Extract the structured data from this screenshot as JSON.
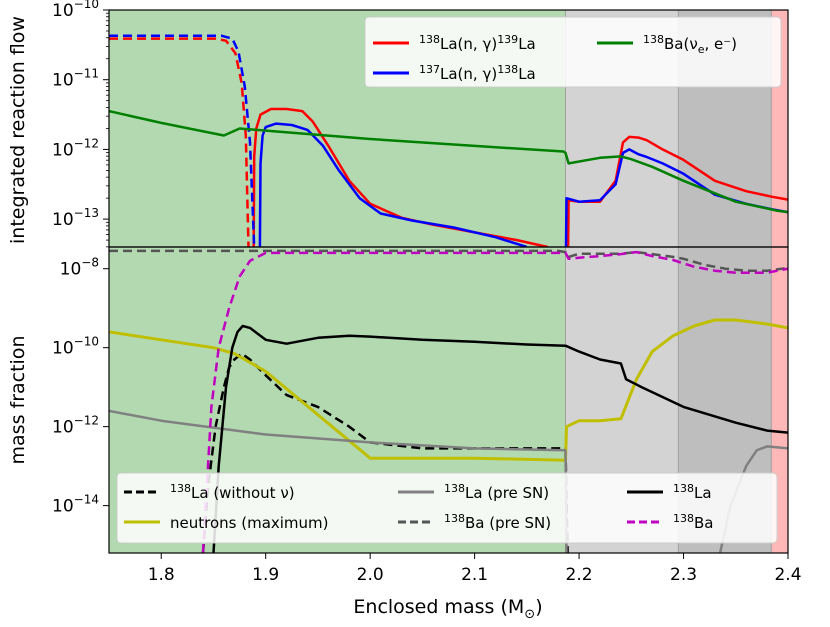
{
  "chart_data": {
    "type": "line",
    "xlabel": "Enclosed mass (M",
    "xlabel_sub": "⊙",
    "xlabel_close": ")",
    "xlim": [
      1.75,
      2.4
    ],
    "xticks": [
      1.8,
      1.9,
      2.0,
      2.1,
      2.2,
      2.3,
      2.4
    ],
    "xtick_labels": [
      "1.8",
      "1.9",
      "2.0",
      "2.1",
      "2.2",
      "2.3",
      "2.4"
    ],
    "regions": [
      {
        "name": "green-region",
        "x0": 1.75,
        "x1": 2.187,
        "color": "#b3d9b1"
      },
      {
        "name": "light-gray-region",
        "x0": 2.187,
        "x1": 2.295,
        "color": "#d3d3d3"
      },
      {
        "name": "dark-gray-region",
        "x0": 2.295,
        "x1": 2.384,
        "color": "#bebebe"
      },
      {
        "name": "red-region",
        "x0": 2.384,
        "x1": 2.4,
        "color": "#ffb8b8"
      }
    ],
    "panels": [
      {
        "name": "top",
        "ylabel": "integrated reaction flow",
        "yscale": "log",
        "ylim_log": [
          -13.4,
          -10
        ],
        "yticks": [
          {
            "base": "10",
            "exp": "−10",
            "log": -10
          },
          {
            "base": "10",
            "exp": "−11",
            "log": -11
          },
          {
            "base": "10",
            "exp": "−12",
            "log": -12
          },
          {
            "base": "10",
            "exp": "−13",
            "log": -13
          }
        ],
        "legend_position": "upper-right",
        "series": [
          {
            "name": "la138-ng-la139",
            "label_pre": "138",
            "label_main": "La(n, γ)",
            "label_sup2": "139",
            "label_tail": "La",
            "color": "#ff0000",
            "dash": "solid",
            "segments": [
              {
                "dash": "dashed",
                "x": [
                  1.75,
                  1.851,
                  1.862,
                  1.871,
                  1.877,
                  1.881,
                  1.8835
                ],
                "log_y": [
                  -10.41,
                  -10.41,
                  -10.44,
                  -10.62,
                  -11.05,
                  -11.8,
                  -13.4
                ]
              },
              {
                "dash": "solid",
                "x": [
                  1.8885,
                  1.889,
                  1.891,
                  1.895,
                  1.905,
                  1.92,
                  1.935,
                  1.945,
                  1.96,
                  1.98,
                  2.0,
                  2.03,
                  2.06,
                  2.1,
                  2.14,
                  2.17
                ],
                "log_y": [
                  -13.4,
                  -12.1,
                  -11.7,
                  -11.5,
                  -11.42,
                  -11.42,
                  -11.45,
                  -11.6,
                  -11.95,
                  -12.45,
                  -12.78,
                  -12.98,
                  -13.08,
                  -13.19,
                  -13.3,
                  -13.4
                ]
              },
              {
                "dash": "solid",
                "x": [
                  2.1895,
                  2.19,
                  2.2,
                  2.22,
                  2.235,
                  2.242,
                  2.248,
                  2.257,
                  2.265,
                  2.28,
                  2.3,
                  2.33,
                  2.36,
                  2.385,
                  2.4
                ],
                "log_y": [
                  -13.4,
                  -12.73,
                  -12.75,
                  -12.75,
                  -12.45,
                  -11.9,
                  -11.82,
                  -11.83,
                  -11.87,
                  -12.0,
                  -12.15,
                  -12.45,
                  -12.6,
                  -12.68,
                  -12.72
                ]
              }
            ]
          },
          {
            "name": "la137-ng-la138",
            "label_pre": "137",
            "label_main": "La(n, γ)",
            "label_sup2": "138",
            "label_tail": "La",
            "color": "#0000ff",
            "dash": "solid",
            "segments": [
              {
                "dash": "dashed",
                "x": [
                  1.75,
                  1.858,
                  1.868,
                  1.874,
                  1.88,
                  1.885,
                  1.889
                ],
                "log_y": [
                  -10.37,
                  -10.37,
                  -10.41,
                  -10.6,
                  -11.1,
                  -11.9,
                  -13.4
                ]
              },
              {
                "dash": "solid",
                "x": [
                  1.8945,
                  1.895,
                  1.897,
                  1.9,
                  1.91,
                  1.925,
                  1.94,
                  1.955,
                  1.97,
                  1.99,
                  2.01,
                  2.04,
                  2.08,
                  2.12,
                  2.15
                ],
                "log_y": [
                  -13.4,
                  -12.2,
                  -11.8,
                  -11.68,
                  -11.63,
                  -11.65,
                  -11.72,
                  -11.95,
                  -12.3,
                  -12.7,
                  -12.92,
                  -13.02,
                  -13.12,
                  -13.26,
                  -13.4
                ]
              },
              {
                "dash": "solid",
                "x": [
                  2.1875,
                  2.188,
                  2.2,
                  2.22,
                  2.235,
                  2.242,
                  2.248,
                  2.257,
                  2.265,
                  2.28,
                  2.3,
                  2.33,
                  2.36,
                  2.385,
                  2.4
                ],
                "log_y": [
                  -13.4,
                  -12.7,
                  -12.75,
                  -12.73,
                  -12.5,
                  -12.05,
                  -12.0,
                  -12.07,
                  -12.11,
                  -12.2,
                  -12.35,
                  -12.65,
                  -12.78,
                  -12.86,
                  -12.9
                ]
              }
            ]
          },
          {
            "name": "ba138-nue-e",
            "label_pre": "138",
            "label_main": "Ba(ν",
            "label_sub": "e",
            "label_tail": ", e⁻)",
            "color": "#008000",
            "dash": "solid",
            "segments": [
              {
                "dash": "solid",
                "x": [
                  1.75,
                  1.8,
                  1.86,
                  1.875,
                  1.9,
                  2.0,
                  2.1,
                  2.185,
                  2.187,
                  2.19,
                  2.22,
                  2.24,
                  2.25,
                  2.27,
                  2.3,
                  2.35,
                  2.39,
                  2.4
                ],
                "log_y": [
                  -11.45,
                  -11.62,
                  -11.8,
                  -11.7,
                  -11.73,
                  -11.85,
                  -11.95,
                  -12.03,
                  -12.05,
                  -12.2,
                  -12.12,
                  -12.1,
                  -12.14,
                  -12.25,
                  -12.45,
                  -12.75,
                  -12.88,
                  -12.9
                ]
              }
            ]
          }
        ]
      },
      {
        "name": "bottom",
        "ylabel": "mass fraction",
        "yscale": "log",
        "ylim_log": [
          -15.2,
          -7.45
        ],
        "yticks": [
          {
            "base": "10",
            "exp": "−8",
            "log": -8
          },
          {
            "base": "10",
            "exp": "−10",
            "log": -10
          },
          {
            "base": "10",
            "exp": "−12",
            "log": -12
          },
          {
            "base": "10",
            "exp": "−14",
            "log": -14
          }
        ],
        "legend_position": "lower-center",
        "series": [
          {
            "name": "la138-without-nu",
            "label_pre": "138",
            "label_main": "La (without ν)",
            "color": "#000000",
            "dash": "dashed",
            "segments": [
              {
                "dash": "dashed",
                "x": [
                  1.84,
                  1.845,
                  1.852,
                  1.86,
                  1.865,
                  1.87,
                  1.877,
                  1.885,
                  1.9,
                  1.92,
                  1.95,
                  1.98,
                  2.0,
                  2.05,
                  2.1,
                  2.187,
                  2.188,
                  2.189
                ],
                "log_y": [
                  -15.2,
                  -13.5,
                  -12.0,
                  -11.0,
                  -10.5,
                  -10.3,
                  -10.15,
                  -10.3,
                  -10.7,
                  -11.2,
                  -11.5,
                  -12.0,
                  -12.4,
                  -12.55,
                  -12.55,
                  -12.55,
                  -13.8,
                  -15.2
                ]
              }
            ]
          },
          {
            "name": "neutrons-maximum",
            "label_main": "neutrons (maximum)",
            "color": "#bfbf00",
            "dash": "solid",
            "segments": [
              {
                "dash": "solid",
                "x": [
                  1.75,
                  1.8,
                  1.85,
                  1.87,
                  1.9,
                  1.95,
                  2.0,
                  2.1,
                  2.187,
                  2.188,
                  2.2,
                  2.22,
                  2.24,
                  2.255,
                  2.27,
                  2.29,
                  2.31,
                  2.33,
                  2.35,
                  2.38,
                  2.4
                ],
                "log_y": [
                  -9.6,
                  -9.8,
                  -10.0,
                  -10.15,
                  -10.6,
                  -11.7,
                  -12.8,
                  -12.8,
                  -12.85,
                  -12.0,
                  -11.85,
                  -11.85,
                  -11.8,
                  -10.8,
                  -10.1,
                  -9.7,
                  -9.45,
                  -9.3,
                  -9.3,
                  -9.4,
                  -9.5
                ]
              }
            ]
          },
          {
            "name": "la138-pre-sn",
            "label_pre": "138",
            "label_main": "La (pre SN)",
            "color": "#808080",
            "dash": "solid",
            "segments": [
              {
                "dash": "solid",
                "x": [
                  1.75,
                  1.8,
                  1.9,
                  2.0,
                  2.1,
                  2.187,
                  2.188
                ],
                "log_y": [
                  -11.6,
                  -11.85,
                  -12.2,
                  -12.4,
                  -12.55,
                  -12.6,
                  -15.2
                ]
              },
              {
                "dash": "solid",
                "x": [
                  2.335,
                  2.345,
                  2.36,
                  2.37,
                  2.38,
                  2.4
                ],
                "log_y": [
                  -15.2,
                  -14.0,
                  -13.0,
                  -12.6,
                  -12.5,
                  -12.55
                ]
              }
            ]
          },
          {
            "name": "ba138-pre-sn",
            "label_pre": "138",
            "label_main": "Ba (pre SN)",
            "color": "#555555",
            "dash": "dashed",
            "segments": [
              {
                "dash": "dashed",
                "x": [
                  1.75,
                  2.18,
                  2.187,
                  2.19,
                  2.2,
                  2.22,
                  2.24,
                  2.255,
                  2.27,
                  2.29,
                  2.3,
                  2.32,
                  2.34,
                  2.36,
                  2.38,
                  2.4
                ],
                "log_y": [
                  -7.55,
                  -7.55,
                  -7.58,
                  -7.7,
                  -7.62,
                  -7.62,
                  -7.62,
                  -7.58,
                  -7.63,
                  -7.7,
                  -7.75,
                  -7.9,
                  -8.0,
                  -8.05,
                  -8.05,
                  -7.98
                ]
              }
            ]
          },
          {
            "name": "la138",
            "label_pre": "138",
            "label_main": "La",
            "color": "#000000",
            "dash": "solid",
            "segments": [
              {
                "dash": "solid",
                "x": [
                  1.85,
                  1.855,
                  1.862,
                  1.868,
                  1.873,
                  1.878,
                  1.885,
                  1.9,
                  1.92,
                  1.95,
                  1.98,
                  2.0,
                  2.05,
                  2.1,
                  2.15,
                  2.187,
                  2.2,
                  2.22,
                  2.24,
                  2.245,
                  2.26,
                  2.3,
                  2.35,
                  2.38,
                  2.4
                ],
                "log_y": [
                  -15.2,
                  -13.0,
                  -11.0,
                  -10.0,
                  -9.6,
                  -9.45,
                  -9.5,
                  -9.8,
                  -9.9,
                  -9.75,
                  -9.7,
                  -9.72,
                  -9.8,
                  -9.85,
                  -9.92,
                  -9.95,
                  -10.1,
                  -10.3,
                  -10.4,
                  -10.8,
                  -11.0,
                  -11.5,
                  -11.9,
                  -12.1,
                  -12.15
                ]
              }
            ]
          },
          {
            "name": "ba138",
            "label_pre": "138",
            "label_main": "Ba",
            "color": "#c000c0",
            "dash": "dashed",
            "segments": [
              {
                "dash": "dashed",
                "x": [
                  1.84,
                  1.848,
                  1.855,
                  1.865,
                  1.875,
                  1.885,
                  1.9,
                  2.187,
                  2.19,
                  2.2,
                  2.22,
                  2.24,
                  2.255,
                  2.27,
                  2.29,
                  2.31,
                  2.33,
                  2.35,
                  2.38,
                  2.4
                ],
                "log_y": [
                  -15.2,
                  -11.5,
                  -10.0,
                  -9.0,
                  -8.2,
                  -7.8,
                  -7.6,
                  -7.6,
                  -7.75,
                  -7.72,
                  -7.68,
                  -7.63,
                  -7.58,
                  -7.68,
                  -7.78,
                  -7.95,
                  -8.05,
                  -8.1,
                  -8.1,
                  -8.0
                ]
              }
            ]
          }
        ]
      }
    ]
  }
}
